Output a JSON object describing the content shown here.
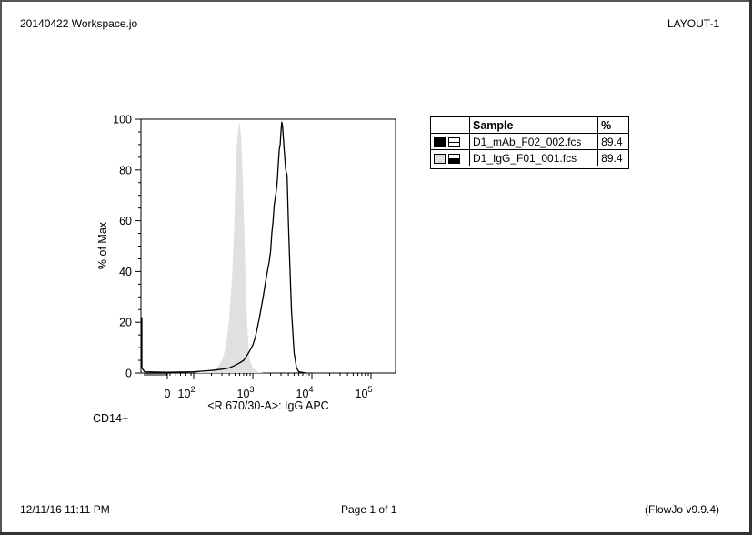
{
  "header": {
    "left": "20140422  Workspace.jo",
    "right": "LAYOUT-1"
  },
  "footer": {
    "left": "12/11/16 11:11 PM",
    "center": "Page 1 of 1",
    "right": "(FlowJo v9.9.4)"
  },
  "caption": "CD14+",
  "colors": {
    "filled_series": "#e0e0e0",
    "line_series": "#000000"
  },
  "legend": {
    "col_sample": "Sample",
    "col_pct": "%",
    "rows": [
      {
        "sample": "D1_mAb_F02_002.fcs",
        "pct": "89.4",
        "swatch": "black-fill",
        "pattern": "line"
      },
      {
        "sample": "D1_IgG_F01_001.fcs",
        "pct": "89.4",
        "swatch": "grey-fill",
        "pattern": "half"
      }
    ]
  },
  "chart_data": {
    "type": "area",
    "xlabel": "<R 670/30-A>: IgG APC",
    "ylabel": "% of Max",
    "xscale": "biexponential",
    "ylim": [
      0,
      100
    ],
    "yticks": [
      "0",
      "20",
      "40",
      "60",
      "80",
      "100"
    ],
    "xticks": [
      {
        "base": "0",
        "exp": ""
      },
      {
        "base": "10",
        "exp": "2"
      },
      {
        "base": "10",
        "exp": "3"
      },
      {
        "base": "10",
        "exp": "4"
      },
      {
        "base": "10",
        "exp": "5"
      }
    ],
    "grid": false,
    "series": [
      {
        "name": "D1_IgG_F01_001.fcs",
        "style": "filled-grey",
        "points": [
          [
            100,
            0
          ],
          [
            200,
            0.5
          ],
          [
            250,
            2
          ],
          [
            300,
            5
          ],
          [
            350,
            10
          ],
          [
            400,
            22
          ],
          [
            450,
            40
          ],
          [
            480,
            55
          ],
          [
            500,
            70
          ],
          [
            520,
            85
          ],
          [
            560,
            95
          ],
          [
            600,
            99
          ],
          [
            640,
            92
          ],
          [
            680,
            75
          ],
          [
            720,
            55
          ],
          [
            760,
            35
          ],
          [
            800,
            20
          ],
          [
            850,
            10
          ],
          [
            900,
            5
          ],
          [
            1000,
            2
          ],
          [
            1200,
            0.5
          ],
          [
            1500,
            0
          ]
        ]
      },
      {
        "name": "D1_mAb_F02_002.fcs",
        "style": "black-line",
        "points": [
          [
            -300,
            22
          ],
          [
            -280,
            2
          ],
          [
            -250,
            0.5
          ],
          [
            0,
            0.3
          ],
          [
            100,
            0.5
          ],
          [
            200,
            1
          ],
          [
            300,
            1.5
          ],
          [
            400,
            2
          ],
          [
            500,
            3
          ],
          [
            600,
            4
          ],
          [
            700,
            5
          ],
          [
            800,
            7
          ],
          [
            900,
            9
          ],
          [
            1000,
            11
          ],
          [
            1100,
            14
          ],
          [
            1200,
            18
          ],
          [
            1300,
            22
          ],
          [
            1500,
            30
          ],
          [
            1700,
            38
          ],
          [
            1900,
            44
          ],
          [
            2000,
            48
          ],
          [
            2100,
            55
          ],
          [
            2200,
            60
          ],
          [
            2300,
            66
          ],
          [
            2500,
            72
          ],
          [
            2600,
            76
          ],
          [
            2700,
            82
          ],
          [
            2800,
            88
          ],
          [
            2900,
            90
          ],
          [
            3000,
            95
          ],
          [
            3100,
            99
          ],
          [
            3200,
            97
          ],
          [
            3400,
            88
          ],
          [
            3600,
            80
          ],
          [
            3800,
            78
          ],
          [
            4000,
            60
          ],
          [
            4200,
            45
          ],
          [
            4500,
            25
          ],
          [
            5000,
            8
          ],
          [
            5500,
            2
          ],
          [
            6000,
            0.5
          ],
          [
            8000,
            0
          ]
        ]
      }
    ]
  }
}
